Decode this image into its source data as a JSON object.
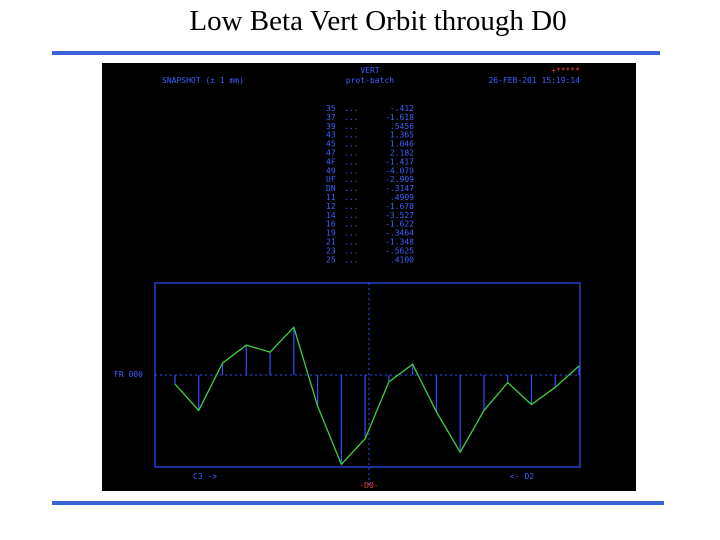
{
  "header": {
    "title": "Low Beta Vert Orbit through D0"
  },
  "screen": {
    "top_left": "SNAPSHOT  (±  1 mm)",
    "top_center": [
      "VERT",
      "prot-batch"
    ],
    "top_right": [
      "+*****",
      "26-FEB-201  15:19:14"
    ],
    "table": {
      "rows": [
        [
          "35",
          "...",
          "-.412"
        ],
        [
          "37",
          "...",
          "-1.618"
        ],
        [
          "39",
          "...",
          ".5456"
        ],
        [
          "43",
          "...",
          "1.365"
        ],
        [
          "45",
          "...",
          "1.046"
        ],
        [
          "47",
          "...",
          "2.182"
        ],
        [
          "4F",
          "...",
          "-1.417"
        ],
        [
          "49",
          "...",
          "-4.079"
        ],
        [
          "UF",
          "...",
          "-2.909"
        ],
        [
          "DN",
          "...",
          "-.3147"
        ],
        [
          "11",
          "...",
          ".4909"
        ],
        [
          "12",
          "...",
          "-1.678"
        ],
        [
          "14",
          "...",
          "-3.527"
        ],
        [
          "16",
          "...",
          "-1.622"
        ],
        [
          "19",
          "...",
          "-.3464"
        ],
        [
          "21",
          "...",
          "-1.348"
        ],
        [
          "23",
          "...",
          "-.5625"
        ],
        [
          "25",
          "...",
          ".4100"
        ]
      ]
    },
    "plot": {
      "ylim": [
        -4.2,
        4.2
      ],
      "zero_label": "FR 000",
      "left_label": "C3 ->",
      "right_label": "<- D2",
      "center_label": "-D0-"
    }
  }
}
